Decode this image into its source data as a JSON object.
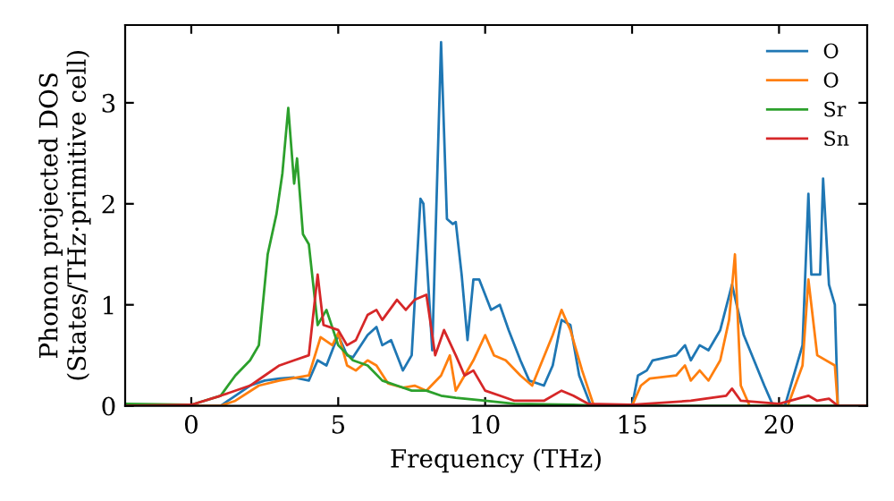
{
  "chart_data": {
    "type": "line",
    "xlabel": "Frequency (THz)",
    "ylabel": "Phonon projected DOS\n(States/THz·primitive cell)",
    "xlim": [
      -2.25,
      23
    ],
    "ylim": [
      0,
      3.77
    ],
    "xticks": [
      0,
      5,
      10,
      15,
      20
    ],
    "yticks": [
      0,
      1,
      2,
      3
    ],
    "legend": "top right",
    "grid": false,
    "marker": "none",
    "line_style": "solid",
    "series": [
      {
        "name": "O",
        "color": "#1f77b4",
        "x": [
          -2.25,
          1,
          1.5,
          2,
          2.5,
          3,
          3.5,
          4,
          4.3,
          4.6,
          5,
          5.3,
          5.5,
          6,
          6.3,
          6.5,
          6.8,
          7.2,
          7.5,
          7.8,
          7.9,
          8.2,
          8.5,
          8.7,
          8.9,
          9.0,
          9.2,
          9.4,
          9.6,
          9.8,
          10.2,
          10.5,
          10.8,
          11.2,
          11.5,
          12,
          12.3,
          12.6,
          12.9,
          13.2,
          13.6,
          15,
          15.2,
          15.5,
          15.7,
          16.5,
          16.8,
          17.0,
          17.3,
          17.6,
          18,
          18.4,
          18.8,
          19.5,
          19.8,
          20.2,
          20.8,
          21,
          21.1,
          21.4,
          21.5,
          21.7,
          21.9,
          22.0,
          23
        ],
        "values": [
          0,
          0,
          0.1,
          0.2,
          0.25,
          0.27,
          0.28,
          0.25,
          0.45,
          0.4,
          0.7,
          0.5,
          0.48,
          0.7,
          0.78,
          0.6,
          0.65,
          0.35,
          0.5,
          2.05,
          2.0,
          0.55,
          3.6,
          1.85,
          1.8,
          1.82,
          1.3,
          0.65,
          1.25,
          1.25,
          0.95,
          1.0,
          0.75,
          0.45,
          0.25,
          0.2,
          0.4,
          0.85,
          0.8,
          0.3,
          0,
          0,
          0.3,
          0.35,
          0.45,
          0.5,
          0.6,
          0.45,
          0.6,
          0.55,
          0.75,
          1.2,
          0.7,
          0.2,
          0,
          0,
          0.6,
          2.1,
          1.3,
          1.3,
          2.25,
          1.2,
          1.0,
          0,
          0
        ]
      },
      {
        "name": "O",
        "color": "#ff7f0e",
        "x": [
          -2.25,
          1,
          1.5,
          2.3,
          3,
          4,
          4.4,
          4.8,
          5.0,
          5.3,
          5.6,
          6,
          6.3,
          6.7,
          7.2,
          7.6,
          8.0,
          8.5,
          8.8,
          9.0,
          9.3,
          9.6,
          10,
          10.3,
          10.7,
          11.2,
          11.6,
          12.3,
          12.6,
          12.9,
          13.3,
          13.7,
          15,
          15.3,
          15.6,
          16.5,
          16.8,
          17.0,
          17.3,
          17.6,
          18.0,
          18.3,
          18.5,
          18.7,
          19,
          20.3,
          20.8,
          21.0,
          21.3,
          21.9,
          22.0,
          23
        ],
        "values": [
          0,
          0,
          0.05,
          0.2,
          0.25,
          0.3,
          0.68,
          0.6,
          0.72,
          0.4,
          0.35,
          0.45,
          0.4,
          0.22,
          0.18,
          0.2,
          0.15,
          0.3,
          0.5,
          0.15,
          0.3,
          0.45,
          0.7,
          0.5,
          0.45,
          0.3,
          0.2,
          0.7,
          0.95,
          0.75,
          0.35,
          0,
          0,
          0.2,
          0.27,
          0.3,
          0.4,
          0.25,
          0.35,
          0.25,
          0.45,
          0.85,
          1.5,
          0.2,
          0,
          0,
          0.4,
          1.25,
          0.5,
          0.4,
          0,
          0
        ]
      },
      {
        "name": "Sr",
        "color": "#2ca02c",
        "x": [
          -2.25,
          0,
          1,
          1.5,
          2,
          2.3,
          2.6,
          2.9,
          3.1,
          3.3,
          3.5,
          3.6,
          3.8,
          4.0,
          4.3,
          4.6,
          5.0,
          5.5,
          6.0,
          6.5,
          7.0,
          7.5,
          8,
          8.5,
          9,
          10,
          11,
          13,
          14,
          23
        ],
        "values": [
          0.02,
          0.01,
          0.1,
          0.3,
          0.45,
          0.6,
          1.5,
          1.9,
          2.3,
          2.95,
          2.2,
          2.45,
          1.7,
          1.6,
          0.8,
          0.95,
          0.6,
          0.45,
          0.4,
          0.25,
          0.2,
          0.15,
          0.15,
          0.1,
          0.08,
          0.05,
          0.02,
          0.01,
          0,
          0
        ]
      },
      {
        "name": "Sn",
        "color": "#d62728",
        "x": [
          -2.25,
          0,
          1,
          2,
          2.5,
          3.0,
          3.5,
          4.0,
          4.3,
          4.5,
          5,
          5.3,
          5.6,
          6,
          6.3,
          6.5,
          7,
          7.3,
          7.6,
          8.0,
          8.3,
          8.6,
          9.0,
          9.3,
          9.6,
          10.0,
          10.5,
          11,
          12,
          12.6,
          13,
          13.5,
          15,
          17,
          18.2,
          18.4,
          18.7,
          20,
          21,
          21.3,
          21.7,
          22.0,
          23
        ],
        "values": [
          0,
          0.01,
          0.1,
          0.2,
          0.3,
          0.4,
          0.45,
          0.5,
          1.3,
          0.8,
          0.75,
          0.6,
          0.65,
          0.9,
          0.95,
          0.85,
          1.05,
          0.95,
          1.05,
          1.1,
          0.5,
          0.75,
          0.5,
          0.3,
          0.35,
          0.15,
          0.1,
          0.05,
          0.05,
          0.15,
          0.1,
          0.02,
          0.01,
          0.05,
          0.1,
          0.17,
          0.05,
          0.02,
          0.1,
          0.05,
          0.07,
          0,
          0
        ]
      }
    ]
  }
}
